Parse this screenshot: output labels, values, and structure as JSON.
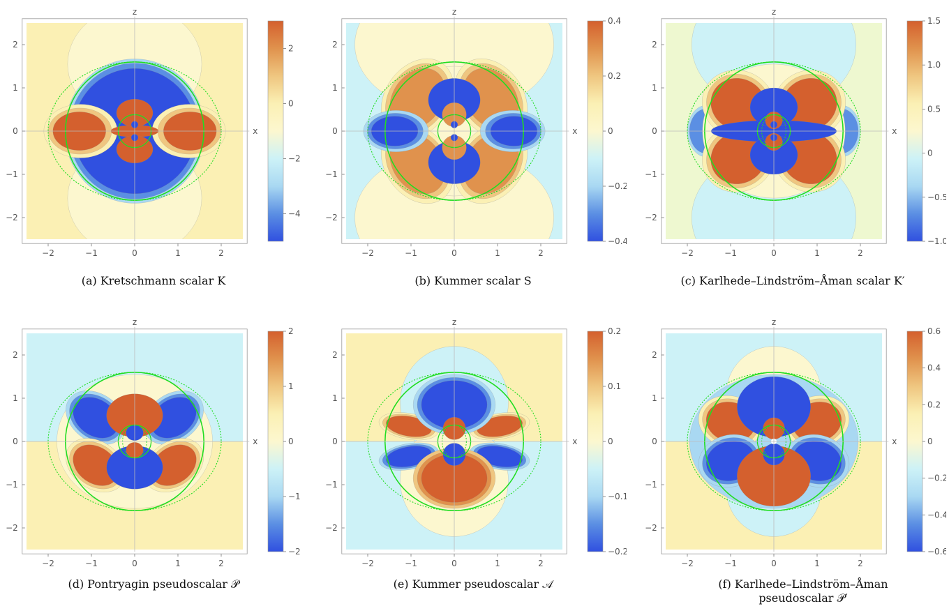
{
  "colors": {
    "deep_blue": "#3050e0",
    "mid_blue": "#5b8fe3",
    "light_blue": "#a9d8f2",
    "cyan_pale": "#cdf2f7",
    "cream": "#fcf7cf",
    "yellow": "#fbf0b4",
    "light_orange": "#efc680",
    "orange": "#e0924d",
    "deep_orange": "#d4602e",
    "curve_green": "#22dd22"
  },
  "chart_data": [
    {
      "id": "a",
      "type": "heatmap",
      "title": "",
      "caption": "(a) Kretschmann scalar K",
      "xlabel": "x",
      "ylabel": "z",
      "xlim": [
        -2.6,
        2.6
      ],
      "ylim": [
        -2.6,
        2.6
      ],
      "xticks": [
        "−2",
        "−1",
        "0",
        "1",
        "2"
      ],
      "yticks": [
        "2",
        "1",
        "0",
        "−1",
        "−2"
      ],
      "colorbar": {
        "range": [
          -5,
          3
        ],
        "ticks": [
          "2",
          "0",
          "−2",
          "−4"
        ]
      }
    },
    {
      "id": "b",
      "type": "heatmap",
      "title": "",
      "caption": "(b) Kummer scalar S",
      "xlabel": "x",
      "ylabel": "z",
      "xlim": [
        -2.6,
        2.6
      ],
      "ylim": [
        -2.6,
        2.6
      ],
      "xticks": [
        "−2",
        "−1",
        "0",
        "1",
        "2"
      ],
      "yticks": [
        "2",
        "1",
        "0",
        "−1",
        "−2"
      ],
      "colorbar": {
        "range": [
          -0.4,
          0.4
        ],
        "ticks": [
          "0.4",
          "0.2",
          "0",
          "−0.2",
          "−0.4"
        ]
      }
    },
    {
      "id": "c",
      "type": "heatmap",
      "title": "",
      "caption": "(c) Karlhede–Lindström–Åman scalar K′",
      "xlabel": "x",
      "ylabel": "z",
      "xlim": [
        -2.6,
        2.6
      ],
      "ylim": [
        -2.6,
        2.6
      ],
      "xticks": [
        "−2",
        "−1",
        "0",
        "1",
        "2"
      ],
      "yticks": [
        "2",
        "1",
        "0",
        "−1",
        "−2"
      ],
      "colorbar": {
        "range": [
          -1.0,
          1.5
        ],
        "ticks": [
          "1.5",
          "1.0",
          "0.5",
          "0",
          "−0.5",
          "−1.0"
        ]
      }
    },
    {
      "id": "d",
      "type": "heatmap",
      "title": "",
      "caption": "(d) Pontryagin pseudoscalar 𝒫",
      "xlabel": "x",
      "ylabel": "z",
      "xlim": [
        -2.6,
        2.6
      ],
      "ylim": [
        -2.6,
        2.6
      ],
      "xticks": [
        "−2",
        "−1",
        "0",
        "1",
        "2"
      ],
      "yticks": [
        "2",
        "1",
        "0",
        "−1",
        "−2"
      ],
      "colorbar": {
        "range": [
          -2,
          2
        ],
        "ticks": [
          "2",
          "1",
          "0",
          "−1",
          "−2"
        ]
      }
    },
    {
      "id": "e",
      "type": "heatmap",
      "title": "",
      "caption": "(e) Kummer pseudoscalar 𝒜",
      "xlabel": "x",
      "ylabel": "z",
      "xlim": [
        -2.6,
        2.6
      ],
      "ylim": [
        -2.6,
        2.6
      ],
      "xticks": [
        "−2",
        "−1",
        "0",
        "1",
        "2"
      ],
      "yticks": [
        "2",
        "1",
        "0",
        "−1",
        "−2"
      ],
      "colorbar": {
        "range": [
          -0.2,
          0.2
        ],
        "ticks": [
          "0.2",
          "0.1",
          "0",
          "−0.1",
          "−0.2"
        ]
      }
    },
    {
      "id": "f",
      "type": "heatmap",
      "title": "",
      "caption": "(f) Karlhede–Lindström–Åman pseudoscalar 𝒫′",
      "xlabel": "x",
      "ylabel": "z",
      "xlim": [
        -2.6,
        2.6
      ],
      "ylim": [
        -2.6,
        2.6
      ],
      "xticks": [
        "−2",
        "−1",
        "0",
        "1",
        "2"
      ],
      "yticks": [
        "2",
        "1",
        "0",
        "−1",
        "−2"
      ],
      "colorbar": {
        "range": [
          -0.6,
          0.6
        ],
        "ticks": [
          "0.6",
          "0.4",
          "0.2",
          "0",
          "−0.2",
          "−0.4",
          "−0.6"
        ]
      }
    }
  ]
}
